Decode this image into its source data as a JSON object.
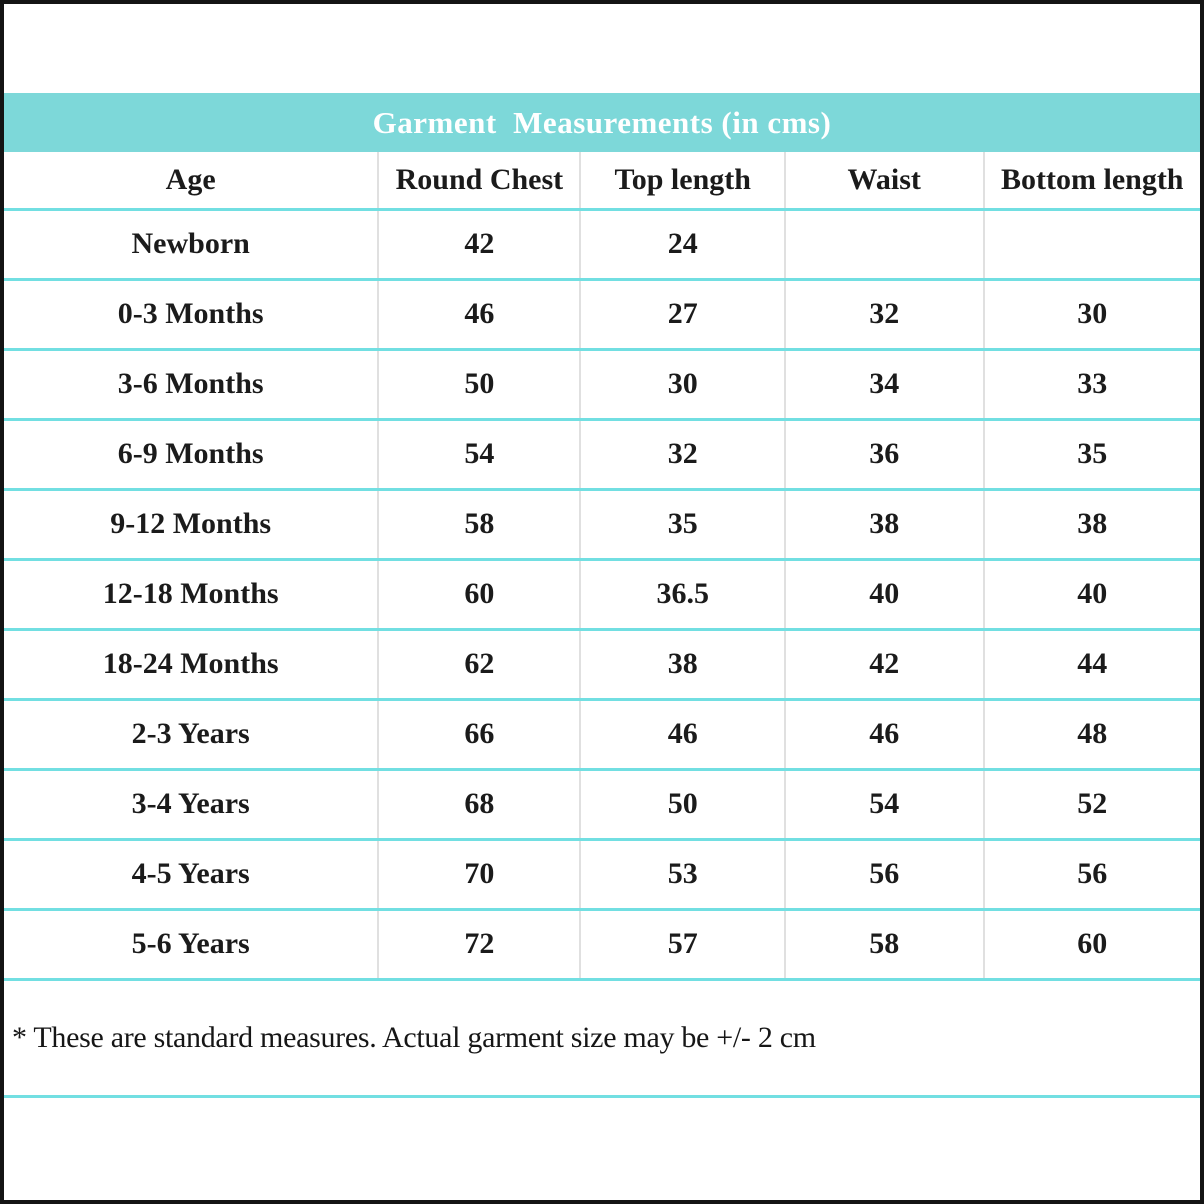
{
  "colors": {
    "title_band_bg": "#7dd8d9",
    "title_text": "#ffffff",
    "row_separator": "#72dfe2",
    "column_separator": "#e0e0e0",
    "outer_border": "#141414",
    "table_text": "#1b1b1b"
  },
  "chart_data": {
    "type": "table",
    "title": "Garment  Measurements (in cms)",
    "columns": [
      "Age",
      "Round Chest",
      "Top length",
      "Waist",
      "Bottom length"
    ],
    "rows": [
      [
        "Newborn",
        "42",
        "24",
        "",
        ""
      ],
      [
        "0-3 Months",
        "46",
        "27",
        "32",
        "30"
      ],
      [
        "3-6 Months",
        "50",
        "30",
        "34",
        "33"
      ],
      [
        "6-9 Months",
        "54",
        "32",
        "36",
        "35"
      ],
      [
        "9-12 Months",
        "58",
        "35",
        "38",
        "38"
      ],
      [
        "12-18 Months",
        "60",
        "36.5",
        "40",
        "40"
      ],
      [
        "18-24 Months",
        "62",
        "38",
        "42",
        "44"
      ],
      [
        "2-3 Years",
        "66",
        "46",
        "46",
        "48"
      ],
      [
        "3-4 Years",
        "68",
        "50",
        "54",
        "52"
      ],
      [
        "4-5 Years",
        "70",
        "53",
        "56",
        "56"
      ],
      [
        "5-6 Years",
        "72",
        "57",
        "58",
        "60"
      ]
    ],
    "footnote": "* These are standard measures. Actual garment size may be +/- 2 cm"
  }
}
